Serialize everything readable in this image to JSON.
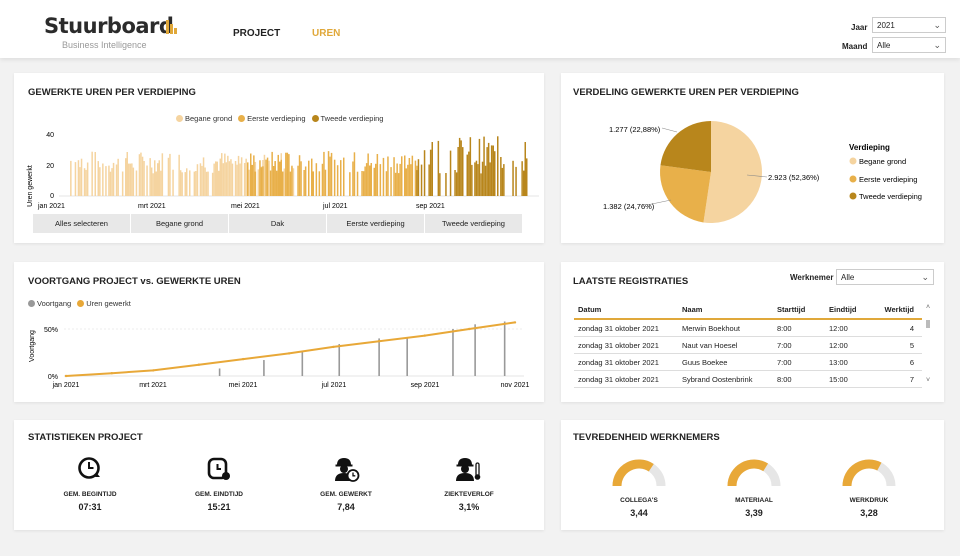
{
  "header": {
    "brand": "Stuurboard",
    "tagline": "Business Intelligence",
    "nav": {
      "project": "PROJECT",
      "uren": "UREN"
    },
    "filters": {
      "jaar_label": "Jaar",
      "jaar_value": "2021",
      "maand_label": "Maand",
      "maand_value": "Alle"
    }
  },
  "colors": {
    "begane": "#f5d4a0",
    "eerste": "#e8b04a",
    "tweede": "#b8861c",
    "voortgang": "#999999",
    "uren": "#e8a838"
  },
  "uren_chart": {
    "title": "GEWERKTE UREN PER VERDIEPING",
    "ylabel": "Uren gewerkt",
    "legend": [
      "Begane grond",
      "Eerste verdieping",
      "Tweede verdieping"
    ],
    "yticks": [
      "0",
      "20",
      "40"
    ],
    "xticks": [
      "jan 2021",
      "mrt 2021",
      "mei 2021",
      "jul 2021",
      "sep 2021"
    ],
    "buttons": [
      "Alles selecteren",
      "Begane grond",
      "Dak",
      "Eerste verdieping",
      "Tweede verdieping"
    ]
  },
  "chart_data": [
    {
      "type": "bar",
      "title": "GEWERKTE UREN PER VERDIEPING",
      "ylabel": "Uren gewerkt",
      "ylim": [
        0,
        40
      ],
      "x_range": [
        "2021-01-01",
        "2021-10-31"
      ],
      "series": [
        {
          "name": "Begane grond",
          "approx_daily_hours_range": [
            15,
            30
          ],
          "period": [
            "2021-01-05",
            "2021-05-31"
          ]
        },
        {
          "name": "Eerste verdieping",
          "approx_daily_hours_range": [
            15,
            30
          ],
          "period": [
            "2021-05-01",
            "2021-08-20"
          ]
        },
        {
          "name": "Tweede verdieping",
          "approx_daily_hours_range": [
            15,
            40
          ],
          "period": [
            "2021-08-20",
            "2021-10-31"
          ]
        }
      ],
      "legend_position": "top"
    },
    {
      "type": "pie",
      "title": "VERDELING GEWERKTE UREN PER VERDIEPING",
      "legend_title": "Verdieping",
      "slices": [
        {
          "name": "Begane grond",
          "value": 2923,
          "label": "2.923 (52,36%)"
        },
        {
          "name": "Eerste verdieping",
          "value": 1382,
          "label": "1.382 (24,76%)"
        },
        {
          "name": "Tweede verdieping",
          "value": 1277,
          "label": "1.277 (22,88%)"
        }
      ],
      "legend_position": "right"
    },
    {
      "type": "line",
      "title": "VOORTGANG PROJECT vs. GEWERKTE UREN",
      "ylabel": "Voortgang",
      "ylim": [
        0,
        0.6
      ],
      "yticks": [
        "0%",
        "50%"
      ],
      "xticks": [
        "jan 2021",
        "mrt 2021",
        "mei 2021",
        "jul 2021",
        "sep 2021",
        "nov 2021"
      ],
      "series": [
        {
          "name": "Voortgang",
          "kind": "bar",
          "x": [
            "2021-04-15",
            "2021-05-15",
            "2021-06-10",
            "2021-07-05",
            "2021-08-01",
            "2021-08-20",
            "2021-09-20",
            "2021-10-05",
            "2021-10-25"
          ],
          "values": [
            0.08,
            0.17,
            0.26,
            0.34,
            0.4,
            0.4,
            0.5,
            0.55,
            0.58
          ]
        },
        {
          "name": "Uren gewerkt",
          "kind": "line",
          "x": [
            "2021-01-01",
            "2021-02-01",
            "2021-03-01",
            "2021-04-01",
            "2021-05-01",
            "2021-06-01",
            "2021-07-01",
            "2021-08-01",
            "2021-09-01",
            "2021-10-01",
            "2021-11-01"
          ],
          "values": [
            0.0,
            0.03,
            0.06,
            0.12,
            0.18,
            0.24,
            0.31,
            0.37,
            0.43,
            0.5,
            0.57
          ]
        }
      ],
      "legend_position": "top-left"
    }
  ],
  "pie": {
    "title": "VERDELING GEWERKTE UREN PER VERDIEPING",
    "legend_title": "Verdieping",
    "legend": [
      "Begane grond",
      "Eerste verdieping",
      "Tweede verdieping"
    ],
    "labels": [
      "2.923 (52,36%)",
      "1.382 (24,76%)",
      "1.277 (22,88%)"
    ]
  },
  "voortgang": {
    "title": "VOORTGANG PROJECT vs. GEWERKTE UREN",
    "ylabel": "Voortgang",
    "legend": [
      "Voortgang",
      "Uren gewerkt"
    ],
    "yticks": [
      "0%",
      "50%"
    ],
    "xticks": [
      "jan 2021",
      "mrt 2021",
      "mei 2021",
      "jul 2021",
      "sep 2021",
      "nov 2021"
    ]
  },
  "registraties": {
    "title": "LAATSTE REGISTRATIES",
    "filter_label": "Werknemer",
    "filter_value": "Alle",
    "columns": [
      "Datum",
      "Naam",
      "Starttijd",
      "Eindtijd",
      "Werktijd"
    ],
    "rows": [
      [
        "zondag 31 oktober 2021",
        "Merwin Boekhout",
        "8:00",
        "12:00",
        "4"
      ],
      [
        "zondag 31 oktober 2021",
        "Naut van Hoesel",
        "7:00",
        "12:00",
        "5"
      ],
      [
        "zondag 31 oktober 2021",
        "Guus Boekee",
        "7:00",
        "13:00",
        "6"
      ],
      [
        "zondag 31 oktober 2021",
        "Sybrand Oostenbrink",
        "8:00",
        "15:00",
        "7"
      ]
    ]
  },
  "stats": {
    "title": "STATISTIEKEN PROJECT",
    "items": [
      {
        "label": "GEM. BEGINTIJD",
        "value": "07:31",
        "icon": "clock-icon"
      },
      {
        "label": "GEM. EINDTIJD",
        "value": "15:21",
        "icon": "clock-icon"
      },
      {
        "label": "GEM. GEWERKT",
        "value": "7,84",
        "icon": "worker-clock-icon"
      },
      {
        "label": "ZIEKTEVERLOF",
        "value": "3,1%",
        "icon": "sick-worker-icon"
      }
    ]
  },
  "tevredenheid": {
    "title": "TEVREDENHEID WERKNEMERS",
    "max": 5,
    "items": [
      {
        "label": "COLLEGA'S",
        "value": "3,44",
        "score": 3.44
      },
      {
        "label": "MATERIAAL",
        "value": "3,39",
        "score": 3.39
      },
      {
        "label": "WERKDRUK",
        "value": "3,28",
        "score": 3.28
      }
    ]
  }
}
